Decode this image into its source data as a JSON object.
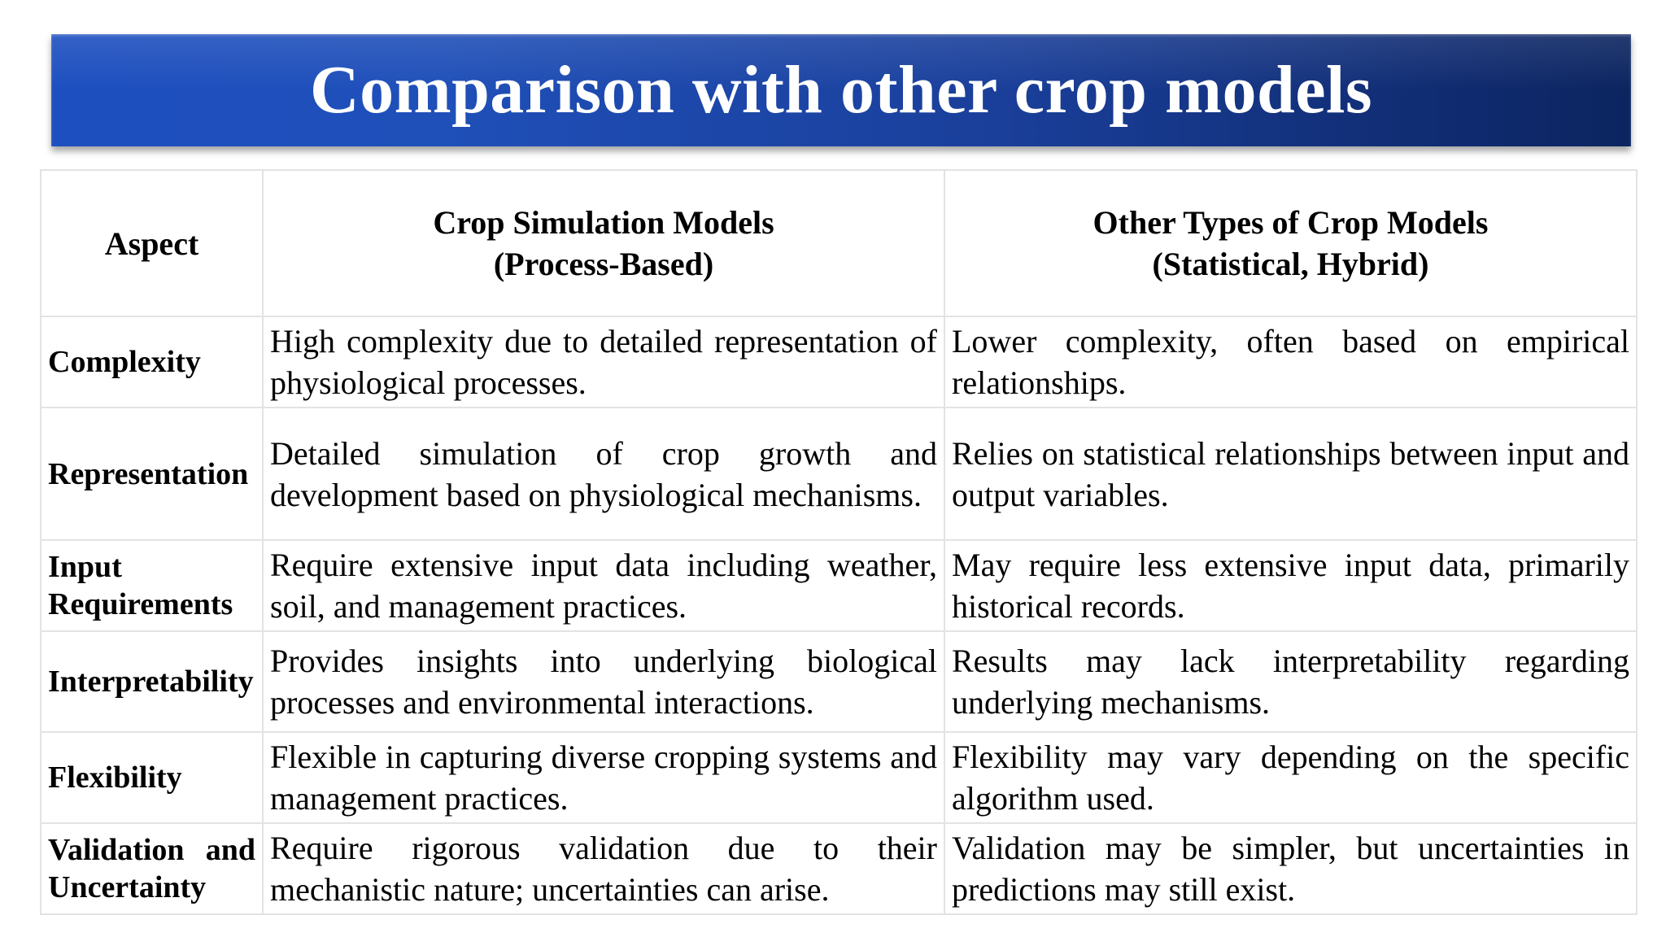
{
  "slide": {
    "title": "Comparison with other crop models"
  },
  "table": {
    "headers": {
      "aspect": "Aspect",
      "col2_line1": "Crop Simulation Models",
      "col2_line2": "(Process-Based)",
      "col3_line1": "Other Types of Crop Models",
      "col3_line2": "(Statistical, Hybrid)"
    },
    "rows": [
      {
        "aspect": "Complexity",
        "simulation": "High complexity due to detailed representation of physiological processes.",
        "other": "Lower complexity, often based on empirical relationships."
      },
      {
        "aspect": "Representation",
        "simulation": "Detailed simulation of crop growth and development based on physiological mechanisms.",
        "other": "Relies on statistical relationships between input and output variables."
      },
      {
        "aspect": "Input Requirements",
        "simulation": "Require extensive input data including weather, soil, and management practices.",
        "other": "May require less extensive input data, primarily historical records."
      },
      {
        "aspect": "Interpretability",
        "simulation": "Provides insights into underlying biological processes and environmental interactions.",
        "other": "Results may lack interpretability regarding underlying mechanisms."
      },
      {
        "aspect": "Flexibility",
        "simulation": "Flexible in capturing diverse cropping systems and management practices.",
        "other": "Flexibility may vary depending on the specific algorithm used."
      },
      {
        "aspect": "Validation and Uncertainty",
        "simulation": "Require rigorous validation due to their mechanistic nature; uncertainties can arise.",
        "other": "Validation may be simpler, but uncertainties in predictions may still exist."
      }
    ]
  },
  "colors": {
    "banner_start": "#1d4fc0",
    "banner_end": "#0c2560",
    "title_text": "#ffffff",
    "grid_line": "#e3e3e3"
  }
}
